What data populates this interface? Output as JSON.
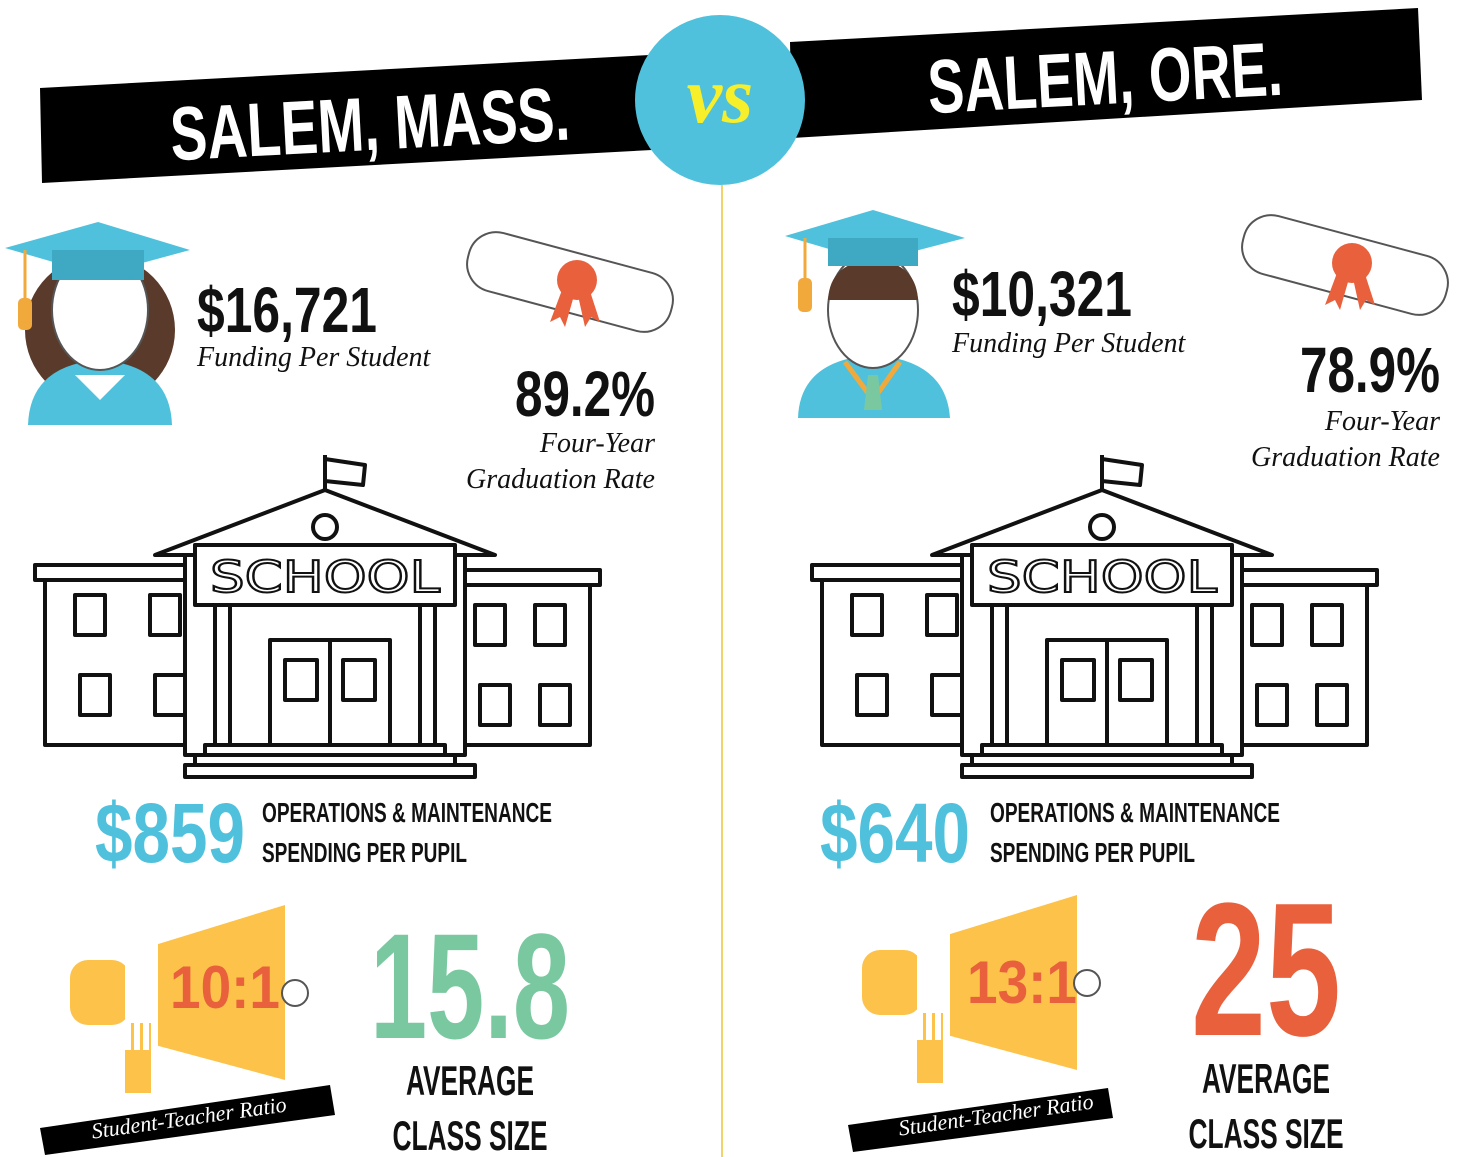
{
  "header": {
    "left_title": "SALEM, MASS.",
    "vs": "vs",
    "right_title": "SALEM, ORE."
  },
  "cities": [
    {
      "funding": "$16,721",
      "funding_label": "Funding Per Student",
      "graduation_rate": "89.2%",
      "graduation_label": [
        "Four-Year",
        "Graduation Rate"
      ],
      "school_sign": "SCHOOL",
      "operations_spending": "$859",
      "operations_label": [
        "OPERATIONS & MAINTENANCE",
        "SPENDING PER PUPIL"
      ],
      "student_teacher_ratio": "10:1",
      "ratio_label": "Student-Teacher Ratio",
      "class_size": "15.8",
      "class_size_label": [
        "AVERAGE",
        "CLASS SIZE"
      ]
    },
    {
      "funding": "$10,321",
      "funding_label": "Funding Per Student",
      "graduation_rate": "78.9%",
      "graduation_label": [
        "Four-Year",
        "Graduation Rate"
      ],
      "school_sign": "SCHOOL",
      "operations_spending": "$640",
      "operations_label": [
        "OPERATIONS & MAINTENANCE",
        "SPENDING PER PUPIL"
      ],
      "student_teacher_ratio": "13:1",
      "ratio_label": "Student-Teacher Ratio",
      "class_size": "25",
      "class_size_label": [
        "AVERAGE",
        "CLASS SIZE"
      ]
    }
  ]
}
